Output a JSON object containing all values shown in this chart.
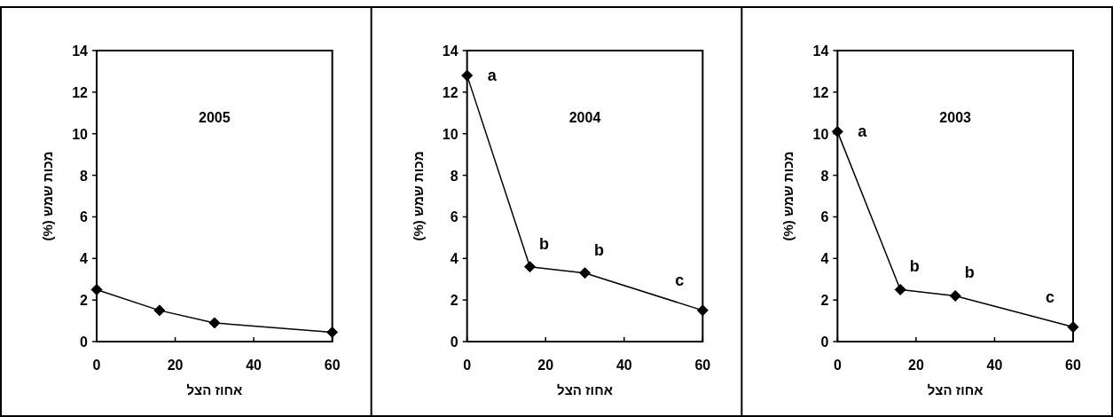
{
  "chart_data": [
    {
      "type": "line",
      "title": "2005",
      "xlabel": "אחוז הצל",
      "ylabel": "מכות שמש (%)",
      "x": [
        0,
        16,
        30,
        60
      ],
      "series": [
        {
          "color": "#000000",
          "values": [
            2.5,
            1.5,
            0.9,
            0.45
          ]
        }
      ],
      "xlim": [
        0,
        60
      ],
      "xticks": [
        0,
        20,
        40,
        60
      ],
      "ylim": [
        0,
        14
      ],
      "yticks": [
        0,
        2,
        4,
        6,
        8,
        10,
        12,
        14
      ],
      "marker": "diamond",
      "grid": false
    },
    {
      "type": "line",
      "title": "2004",
      "xlabel": "אחוז הצל",
      "ylabel": "מכות שמש (%)",
      "x": [
        0,
        16,
        30,
        60
      ],
      "series": [
        {
          "color": "#000000",
          "values": [
            12.8,
            3.6,
            3.3,
            1.5
          ]
        }
      ],
      "xlim": [
        0,
        60
      ],
      "xticks": [
        0,
        20,
        40,
        60
      ],
      "ylim": [
        0,
        14
      ],
      "yticks": [
        0,
        2,
        4,
        6,
        8,
        10,
        12,
        14
      ],
      "marker": "diamond",
      "grid": false,
      "annotations": [
        {
          "text": "a",
          "x": 0,
          "y": 12.8
        },
        {
          "text": "b",
          "x": 16,
          "y": 3.6
        },
        {
          "text": "b",
          "x": 30,
          "y": 3.3
        },
        {
          "text": "c",
          "x": 60,
          "y": 1.5
        }
      ]
    },
    {
      "type": "line",
      "title": "2003",
      "xlabel": "אחוז הצל",
      "ylabel": "מכות שמש (%)",
      "x": [
        0,
        16,
        30,
        60
      ],
      "series": [
        {
          "color": "#000000",
          "values": [
            10.1,
            2.5,
            2.2,
            0.7
          ]
        }
      ],
      "xlim": [
        0,
        60
      ],
      "xticks": [
        0,
        20,
        40,
        60
      ],
      "ylim": [
        0,
        14
      ],
      "yticks": [
        0,
        2,
        4,
        6,
        8,
        10,
        12,
        14
      ],
      "marker": "diamond",
      "grid": false,
      "annotations": [
        {
          "text": "a",
          "x": 0,
          "y": 10.1
        },
        {
          "text": "b",
          "x": 16,
          "y": 2.5
        },
        {
          "text": "b",
          "x": 30,
          "y": 2.2
        },
        {
          "text": "c",
          "x": 60,
          "y": 0.7
        }
      ]
    }
  ]
}
